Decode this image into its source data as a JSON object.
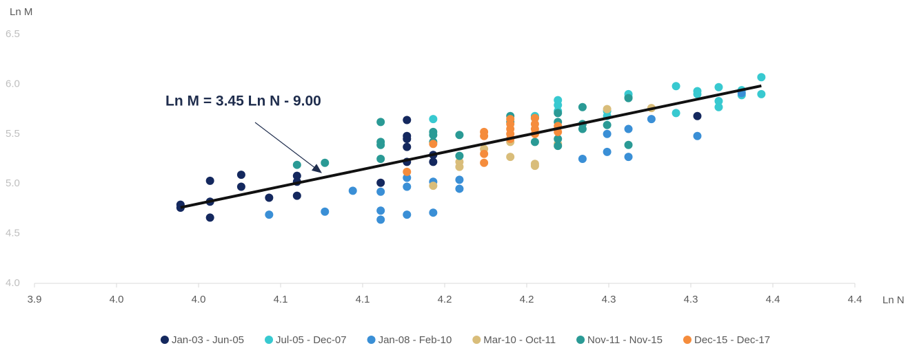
{
  "chart_data": {
    "type": "scatter",
    "x_label": "Ln N",
    "y_label": "Ln M",
    "xlim": [
      3.9,
      4.4
    ],
    "xticks": [
      3.9,
      {
        "value": 3.95,
        "label": "4.0"
      },
      {
        "value": 4.0,
        "label": "4.0"
      },
      {
        "value": 4.05,
        "label": "4.1"
      },
      4.1,
      {
        "value": 4.15,
        "label": "4.2"
      },
      4.2,
      {
        "value": 4.25,
        "label": "4.3"
      },
      4.3,
      {
        "value": 4.35,
        "label": "4.4"
      },
      4.4
    ],
    "ylim": [
      4.0,
      6.5
    ],
    "yticks": [
      {
        "value": 4.0,
        "label": "4.0"
      },
      4.5,
      {
        "value": 5.0,
        "label": "5.0"
      },
      5.5,
      {
        "value": 6.0,
        "label": "6.0"
      },
      6.5
    ],
    "legend": "bottom",
    "trend": {
      "label": "Ln M = 3.45 Ln N  - 9.00",
      "slope": 3.45,
      "intercept": -9.0,
      "x": [
        3.989,
        4.343
      ]
    },
    "series": [
      {
        "name": "Jan-03 - Jun-05",
        "color": "#14285e",
        "x": [
          3.989,
          3.989,
          4.007,
          4.007,
          4.007,
          4.026,
          4.026,
          4.043,
          4.06,
          4.06,
          4.06,
          4.111,
          4.127,
          4.127,
          4.127,
          4.127,
          4.127,
          4.143,
          4.143,
          4.304
        ],
        "values": [
          4.79,
          4.76,
          5.03,
          4.82,
          4.66,
          5.09,
          4.97,
          4.86,
          5.08,
          5.02,
          4.88,
          5.01,
          5.64,
          5.48,
          5.45,
          5.37,
          5.22,
          5.29,
          5.22,
          5.68
        ]
      },
      {
        "name": "Jul-05 - Dec-07",
        "color": "#38c9d0",
        "x": [
          4.143,
          4.205,
          4.219,
          4.219,
          4.219,
          4.249,
          4.249,
          4.262,
          4.262,
          4.291,
          4.291,
          4.304,
          4.304,
          4.317,
          4.317,
          4.317,
          4.331,
          4.331,
          4.343,
          4.343
        ],
        "values": [
          5.65,
          5.68,
          5.84,
          5.79,
          5.73,
          5.73,
          5.68,
          5.9,
          5.87,
          5.98,
          5.71,
          5.93,
          5.9,
          5.97,
          5.83,
          5.77,
          5.94,
          5.89,
          6.07,
          5.9
        ]
      },
      {
        "name": "Jan-08 - Feb-10",
        "color": "#3a8fd6",
        "x": [
          4.043,
          4.077,
          4.094,
          4.111,
          4.111,
          4.111,
          4.127,
          4.127,
          4.127,
          4.143,
          4.143,
          4.159,
          4.159,
          4.234,
          4.249,
          4.249,
          4.262,
          4.262,
          4.276,
          4.304,
          4.331
        ],
        "values": [
          4.69,
          4.72,
          4.93,
          4.92,
          4.73,
          4.64,
          5.06,
          4.97,
          4.69,
          5.02,
          4.71,
          5.04,
          4.95,
          5.25,
          5.32,
          5.5,
          5.55,
          5.27,
          5.65,
          5.48,
          5.91
        ]
      },
      {
        "name": "Mar-10 - Oct-11",
        "color": "#d9bd7a",
        "x": [
          4.143,
          4.159,
          4.159,
          4.174,
          4.19,
          4.19,
          4.205,
          4.205,
          4.219,
          4.249,
          4.276
        ],
        "values": [
          4.98,
          5.17,
          5.22,
          5.35,
          5.27,
          5.42,
          5.2,
          5.18,
          5.4,
          5.75,
          5.76
        ]
      },
      {
        "name": "Nov-11 - Nov-15",
        "color": "#2a9a95",
        "x": [
          4.06,
          4.077,
          4.111,
          4.111,
          4.111,
          4.111,
          4.143,
          4.143,
          4.143,
          4.159,
          4.159,
          4.19,
          4.19,
          4.205,
          4.205,
          4.219,
          4.219,
          4.219,
          4.219,
          4.234,
          4.234,
          4.234,
          4.249,
          4.262,
          4.262
        ],
        "values": [
          5.19,
          5.21,
          5.62,
          5.42,
          5.39,
          5.25,
          5.52,
          5.49,
          5.42,
          5.49,
          5.28,
          5.68,
          5.62,
          5.66,
          5.42,
          5.71,
          5.62,
          5.45,
          5.38,
          5.77,
          5.6,
          5.55,
          5.59,
          5.39,
          5.86
        ]
      },
      {
        "name": "Dec-15 - Dec-17",
        "color": "#f58c3c",
        "x": [
          4.127,
          4.143,
          4.174,
          4.174,
          4.174,
          4.174,
          4.19,
          4.19,
          4.19,
          4.19,
          4.19,
          4.205,
          4.205,
          4.205,
          4.205,
          4.219,
          4.219
        ],
        "values": [
          5.12,
          5.4,
          5.52,
          5.48,
          5.3,
          5.21,
          5.65,
          5.6,
          5.55,
          5.5,
          5.45,
          5.66,
          5.6,
          5.55,
          5.5,
          5.58,
          5.52
        ]
      }
    ]
  }
}
